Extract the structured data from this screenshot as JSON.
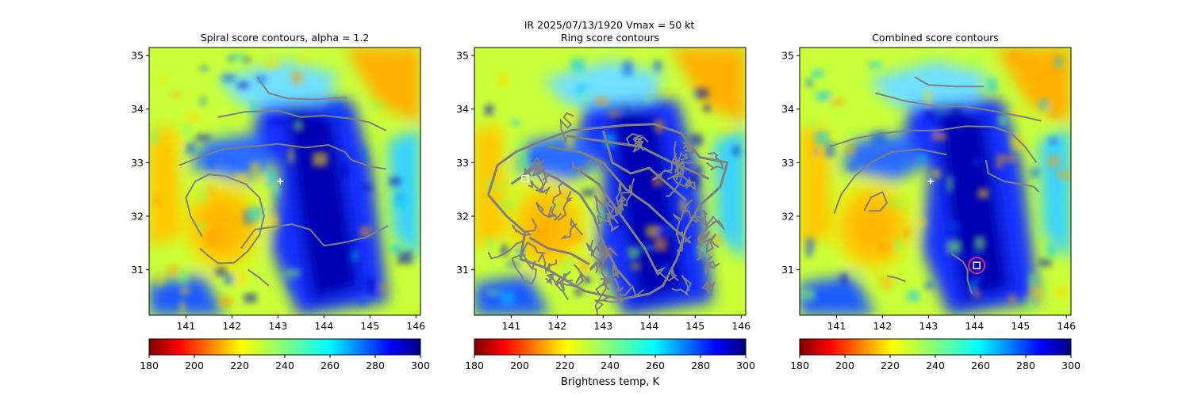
{
  "figure": {
    "suptitle_line": "IR  2025/07/13/1920    Vmax = 50 kt",
    "colorbar_label": "Brightness temp, K"
  },
  "colors": {
    "contour": "#808080",
    "marker_white": "#ffffff",
    "circle": "#e0218a",
    "axis": "#000000"
  },
  "chart_data": [
    {
      "type": "heatmap",
      "title": "Spiral score contours, alpha =  1.2",
      "xlabel": "",
      "ylabel": "",
      "xlim": [
        140.2,
        146.1
      ],
      "ylim": [
        30.15,
        35.15
      ],
      "xticks": [
        141,
        142,
        143,
        144,
        145,
        146
      ],
      "yticks": [
        31,
        32,
        33,
        34,
        35
      ],
      "colorbar": {
        "range": [
          180,
          300
        ],
        "ticks": [
          180,
          200,
          220,
          240,
          260,
          280,
          300
        ],
        "colormap": "jet_r"
      },
      "markers": [
        {
          "kind": "plus",
          "lon": 143.05,
          "lat": 32.65
        }
      ],
      "contours": [
        [
          [
            141.35,
            31.62
          ],
          [
            141.1,
            32.0
          ],
          [
            141.0,
            32.35
          ],
          [
            141.2,
            32.65
          ],
          [
            141.5,
            32.78
          ],
          [
            141.85,
            32.75
          ],
          [
            142.3,
            32.6
          ],
          [
            142.6,
            32.35
          ],
          [
            142.7,
            32.0
          ],
          [
            142.6,
            31.65
          ],
          [
            142.35,
            31.35
          ],
          [
            142.05,
            31.13
          ],
          [
            141.7,
            31.12
          ],
          [
            141.5,
            31.25
          ],
          [
            141.3,
            31.4
          ]
        ],
        [
          [
            140.85,
            32.95
          ],
          [
            141.3,
            33.1
          ],
          [
            141.8,
            33.25
          ],
          [
            142.4,
            33.3
          ],
          [
            143.0,
            33.35
          ],
          [
            143.6,
            33.28
          ],
          [
            144.1,
            33.33
          ],
          [
            144.45,
            33.2
          ],
          [
            144.6,
            33.05
          ],
          [
            145.0,
            32.93
          ],
          [
            145.35,
            32.88
          ]
        ],
        [
          [
            141.7,
            33.85
          ],
          [
            142.3,
            33.95
          ],
          [
            143.0,
            33.97
          ],
          [
            143.5,
            33.85
          ],
          [
            144.0,
            33.88
          ],
          [
            144.6,
            33.82
          ],
          [
            145.0,
            33.75
          ],
          [
            145.35,
            33.6
          ]
        ],
        [
          [
            142.55,
            34.6
          ],
          [
            142.8,
            34.3
          ],
          [
            143.2,
            34.2
          ],
          [
            143.8,
            34.18
          ],
          [
            144.5,
            34.22
          ]
        ],
        [
          [
            142.2,
            31.4
          ],
          [
            142.5,
            31.75
          ],
          [
            142.9,
            31.8
          ],
          [
            143.3,
            31.85
          ],
          [
            143.7,
            31.75
          ],
          [
            144.0,
            31.45
          ],
          [
            144.4,
            31.5
          ],
          [
            144.9,
            31.6
          ],
          [
            145.4,
            31.82
          ]
        ],
        [
          [
            142.35,
            31.0
          ],
          [
            142.6,
            30.85
          ],
          [
            142.8,
            30.7
          ]
        ]
      ]
    },
    {
      "type": "heatmap",
      "title": "Ring score contours",
      "xlabel": "",
      "ylabel": "",
      "xlim": [
        140.2,
        146.1
      ],
      "ylim": [
        30.15,
        35.15
      ],
      "xticks": [
        141,
        142,
        143,
        144,
        145,
        146
      ],
      "yticks": [
        31,
        32,
        33,
        34,
        35
      ],
      "colorbar": {
        "range": [
          180,
          300
        ],
        "ticks": [
          180,
          200,
          220,
          240,
          260,
          280,
          300
        ],
        "colormap": "jet_r"
      },
      "markers": [
        {
          "kind": "square",
          "lon": 141.3,
          "lat": 32.7
        }
      ],
      "contours": [
        [
          [
            140.5,
            32.4
          ],
          [
            140.7,
            32.95
          ],
          [
            141.1,
            33.2
          ],
          [
            141.8,
            33.45
          ],
          [
            142.3,
            33.6
          ],
          [
            142.9,
            33.65
          ],
          [
            143.5,
            33.7
          ],
          [
            144.1,
            33.72
          ],
          [
            144.7,
            33.55
          ],
          [
            145.1,
            33.1
          ],
          [
            145.7,
            33.0
          ],
          [
            145.55,
            32.55
          ],
          [
            145.1,
            32.2
          ],
          [
            144.8,
            31.75
          ],
          [
            144.6,
            31.2
          ],
          [
            144.3,
            30.7
          ],
          [
            144.0,
            30.55
          ],
          [
            143.4,
            30.45
          ],
          [
            142.6,
            30.6
          ],
          [
            142.1,
            30.85
          ],
          [
            141.7,
            31.05
          ],
          [
            141.2,
            31.2
          ],
          [
            141.3,
            31.7
          ],
          [
            140.9,
            32.0
          ],
          [
            140.5,
            32.4
          ]
        ],
        [
          [
            141.0,
            32.6
          ],
          [
            141.5,
            32.9
          ],
          [
            142.0,
            32.7
          ],
          [
            142.5,
            32.4
          ],
          [
            142.8,
            32.0
          ],
          [
            143.0,
            31.5
          ],
          [
            143.3,
            31.0
          ],
          [
            143.6,
            30.7
          ]
        ],
        [
          [
            141.8,
            33.3
          ],
          [
            142.5,
            33.2
          ],
          [
            143.0,
            33.0
          ],
          [
            143.5,
            32.5
          ],
          [
            144.0,
            32.2
          ],
          [
            144.5,
            31.8
          ],
          [
            144.9,
            31.5
          ]
        ],
        [
          [
            142.2,
            33.5
          ],
          [
            143.0,
            33.4
          ],
          [
            143.8,
            33.3
          ],
          [
            144.5,
            33.0
          ],
          [
            145.3,
            32.7
          ]
        ],
        [
          [
            142.4,
            32.9
          ],
          [
            142.9,
            32.6
          ],
          [
            143.4,
            32.0
          ],
          [
            143.9,
            31.4
          ],
          [
            144.2,
            30.9
          ]
        ],
        [
          [
            141.4,
            31.6
          ],
          [
            141.8,
            31.4
          ],
          [
            142.3,
            31.3
          ],
          [
            142.7,
            31.1
          ]
        ],
        [
          [
            143.0,
            33.6
          ],
          [
            143.2,
            33.0
          ],
          [
            143.6,
            32.8
          ],
          [
            144.0,
            32.9
          ],
          [
            144.4,
            32.6
          ],
          [
            144.8,
            32.3
          ]
        ]
      ]
    },
    {
      "type": "heatmap",
      "title": "Combined score contours",
      "xlabel": "",
      "ylabel": "",
      "xlim": [
        140.2,
        146.1
      ],
      "ylim": [
        30.15,
        35.15
      ],
      "xticks": [
        141,
        142,
        143,
        144,
        145,
        146
      ],
      "yticks": [
        31,
        32,
        33,
        34,
        35
      ],
      "colorbar": {
        "range": [
          180,
          300
        ],
        "ticks": [
          180,
          200,
          220,
          240,
          260,
          280,
          300
        ],
        "colormap": "jet_r"
      },
      "markers": [
        {
          "kind": "plus",
          "lon": 143.05,
          "lat": 32.65
        },
        {
          "kind": "square",
          "lon": 144.05,
          "lat": 31.08
        },
        {
          "kind": "circle",
          "lon": 144.05,
          "lat": 31.08
        }
      ],
      "contours": [
        [
          [
            140.95,
            32.05
          ],
          [
            141.1,
            32.4
          ],
          [
            141.4,
            32.75
          ],
          [
            141.75,
            33.0
          ],
          [
            142.2,
            33.2
          ],
          [
            142.8,
            33.25
          ],
          [
            143.4,
            33.15
          ]
        ],
        [
          [
            140.85,
            33.3
          ],
          [
            141.4,
            33.45
          ],
          [
            142.0,
            33.55
          ],
          [
            142.6,
            33.6
          ],
          [
            143.2,
            33.6
          ],
          [
            143.8,
            33.68
          ],
          [
            144.4,
            33.67
          ],
          [
            144.8,
            33.55
          ],
          [
            145.1,
            33.3
          ],
          [
            145.35,
            33.0
          ]
        ],
        [
          [
            141.85,
            34.3
          ],
          [
            142.5,
            34.15
          ],
          [
            143.2,
            34.05
          ],
          [
            143.8,
            34.05
          ],
          [
            144.5,
            33.95
          ],
          [
            145.1,
            33.85
          ],
          [
            145.45,
            33.78
          ]
        ],
        [
          [
            142.7,
            34.6
          ],
          [
            143.0,
            34.45
          ],
          [
            143.6,
            34.42
          ],
          [
            144.2,
            34.42
          ]
        ],
        [
          [
            141.6,
            32.1
          ],
          [
            141.75,
            32.35
          ],
          [
            142.0,
            32.45
          ],
          [
            142.1,
            32.25
          ],
          [
            141.95,
            32.1
          ],
          [
            141.7,
            32.1
          ]
        ],
        [
          [
            144.25,
            33.05
          ],
          [
            144.3,
            32.8
          ],
          [
            144.65,
            32.65
          ],
          [
            145.0,
            32.6
          ],
          [
            145.3,
            32.55
          ],
          [
            145.4,
            32.45
          ]
        ],
        [
          [
            143.5,
            31.3
          ],
          [
            143.75,
            31.15
          ],
          [
            143.85,
            31.0
          ],
          [
            143.85,
            30.8
          ],
          [
            143.95,
            30.55
          ]
        ],
        [
          [
            142.1,
            30.88
          ],
          [
            142.3,
            30.85
          ],
          [
            142.5,
            30.78
          ]
        ]
      ]
    }
  ]
}
